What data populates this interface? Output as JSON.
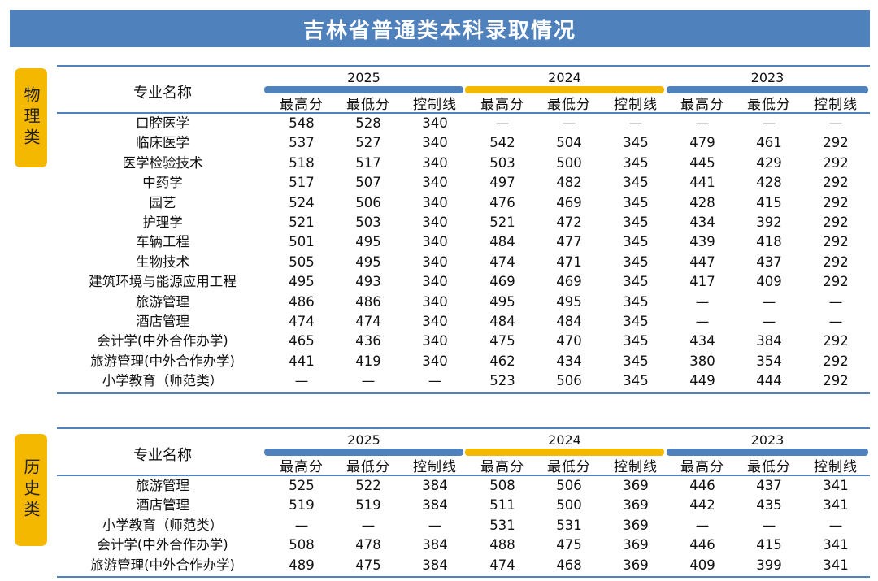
{
  "title": "吉林省普通类本科录取情况",
  "colors": {
    "title_bg": "#4f81bd",
    "blue": "#4f81bd",
    "gold": "#f5b800"
  },
  "header": {
    "name_col": "专业名称",
    "years": [
      "2025",
      "2024",
      "2023"
    ],
    "sub_cols": [
      "最高分",
      "最低分",
      "控制线"
    ]
  },
  "sections": [
    {
      "label": "物理类",
      "rows": [
        {
          "name": "口腔医学",
          "values": [
            "548",
            "528",
            "340",
            "—",
            "—",
            "—",
            "—",
            "—",
            "—"
          ]
        },
        {
          "name": "临床医学",
          "values": [
            "537",
            "527",
            "340",
            "542",
            "504",
            "345",
            "479",
            "461",
            "292"
          ]
        },
        {
          "name": "医学检验技术",
          "values": [
            "518",
            "517",
            "340",
            "503",
            "500",
            "345",
            "445",
            "429",
            "292"
          ]
        },
        {
          "name": "中药学",
          "values": [
            "517",
            "507",
            "340",
            "497",
            "482",
            "345",
            "441",
            "428",
            "292"
          ]
        },
        {
          "name": "园艺",
          "values": [
            "524",
            "506",
            "340",
            "476",
            "469",
            "345",
            "428",
            "415",
            "292"
          ]
        },
        {
          "name": "护理学",
          "values": [
            "521",
            "503",
            "340",
            "521",
            "472",
            "345",
            "434",
            "392",
            "292"
          ]
        },
        {
          "name": "车辆工程",
          "values": [
            "501",
            "495",
            "340",
            "484",
            "477",
            "345",
            "439",
            "418",
            "292"
          ]
        },
        {
          "name": "生物技术",
          "values": [
            "505",
            "495",
            "340",
            "474",
            "471",
            "345",
            "447",
            "437",
            "292"
          ]
        },
        {
          "name": "建筑环境与能源应用工程",
          "values": [
            "495",
            "493",
            "340",
            "469",
            "469",
            "345",
            "417",
            "409",
            "292"
          ]
        },
        {
          "name": "旅游管理",
          "values": [
            "486",
            "486",
            "340",
            "495",
            "495",
            "345",
            "—",
            "—",
            "—"
          ]
        },
        {
          "name": "酒店管理",
          "values": [
            "474",
            "474",
            "340",
            "484",
            "484",
            "345",
            "—",
            "—",
            "—"
          ]
        },
        {
          "name": "会计学(中外合作办学)",
          "values": [
            "465",
            "436",
            "340",
            "475",
            "470",
            "345",
            "434",
            "384",
            "292"
          ]
        },
        {
          "name": "旅游管理(中外合作办学)",
          "values": [
            "441",
            "419",
            "340",
            "462",
            "434",
            "345",
            "380",
            "354",
            "292"
          ]
        },
        {
          "name": "小学教育（师范类）",
          "values": [
            "—",
            "—",
            "—",
            "523",
            "506",
            "345",
            "449",
            "444",
            "292"
          ]
        }
      ]
    },
    {
      "label": "历史类",
      "rows": [
        {
          "name": "旅游管理",
          "values": [
            "525",
            "522",
            "384",
            "508",
            "506",
            "369",
            "446",
            "437",
            "341"
          ]
        },
        {
          "name": "酒店管理",
          "values": [
            "519",
            "519",
            "384",
            "511",
            "500",
            "369",
            "442",
            "435",
            "341"
          ]
        },
        {
          "name": "小学教育（师范类）",
          "values": [
            "—",
            "—",
            "—",
            "531",
            "531",
            "369",
            "—",
            "—",
            "—"
          ]
        },
        {
          "name": "会计学(中外合作办学)",
          "values": [
            "508",
            "478",
            "384",
            "488",
            "475",
            "369",
            "446",
            "415",
            "341"
          ]
        },
        {
          "name": "旅游管理(中外合作办学)",
          "values": [
            "489",
            "475",
            "384",
            "474",
            "468",
            "369",
            "409",
            "399",
            "341"
          ]
        }
      ]
    }
  ]
}
